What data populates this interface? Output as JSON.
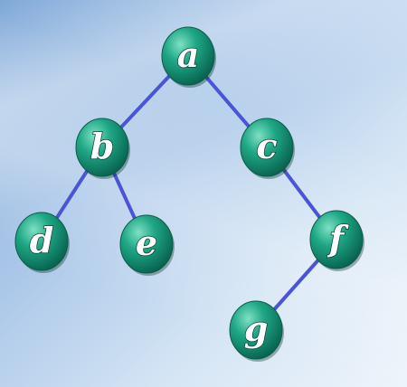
{
  "diagram": {
    "type": "binary-tree",
    "node_color": "#1a9e7e",
    "edge_color": "#4a55d6",
    "nodes": [
      {
        "id": "a",
        "label": "a"
      },
      {
        "id": "b",
        "label": "b"
      },
      {
        "id": "c",
        "label": "c"
      },
      {
        "id": "d",
        "label": "d"
      },
      {
        "id": "e",
        "label": "e"
      },
      {
        "id": "f",
        "label": "f"
      },
      {
        "id": "g",
        "label": "g"
      }
    ],
    "edges": [
      {
        "from": "a",
        "to": "b"
      },
      {
        "from": "a",
        "to": "c"
      },
      {
        "from": "b",
        "to": "d"
      },
      {
        "from": "b",
        "to": "e"
      },
      {
        "from": "c",
        "to": "f"
      },
      {
        "from": "f",
        "to": "g"
      }
    ]
  }
}
